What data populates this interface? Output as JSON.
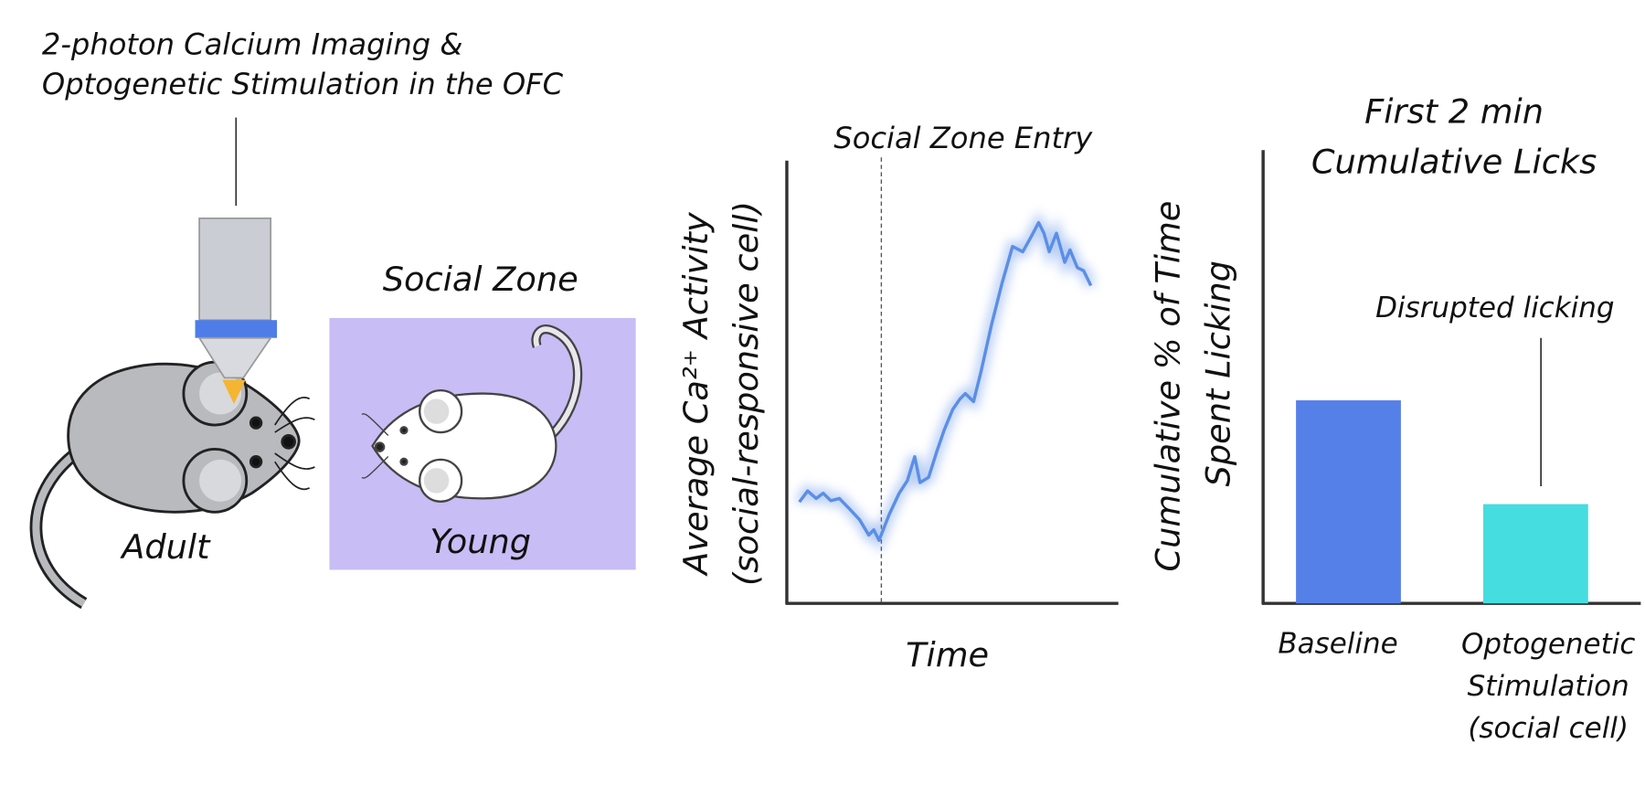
{
  "diagram": {
    "method_label": [
      "2-photon Calcium Imaging &",
      "Optogenetic Stimulation in the OFC"
    ],
    "zone_label": "Social Zone",
    "adult_label": "Adult",
    "young_label": "Young"
  },
  "chart_data": [
    {
      "type": "line",
      "ylabel": [
        "Average Ca²⁺ Activity",
        "(social-responsive cell)"
      ],
      "xlabel": "Time",
      "xlim": [
        0,
        100
      ],
      "ylim": [
        0,
        100
      ],
      "annotation": {
        "text": "Social Zone Entry",
        "x": 28.6
      },
      "series": [
        {
          "color": "#5b8ee6",
          "x": [
            3.8,
            6.3,
            8.9,
            11,
            13.3,
            15.9,
            19,
            22,
            24.8,
            26.3,
            27.9,
            31,
            34,
            36.5,
            38.7,
            40.3,
            42.9,
            45.4,
            47.6,
            50.2,
            52.4,
            54,
            56.5,
            58.7,
            61.9,
            65.1,
            68.3,
            71.4,
            74,
            76.2,
            77.8,
            79.4,
            81.6,
            84.1,
            85.7,
            87.9,
            89.8,
            92
          ],
          "values": [
            23,
            25.5,
            23.8,
            25,
            23.3,
            23.8,
            21.4,
            19,
            15.5,
            16.7,
            14.3,
            20.2,
            25,
            27.9,
            33.3,
            27.4,
            28.6,
            34.5,
            39.3,
            44,
            46.4,
            47.6,
            45.8,
            52.4,
            63.1,
            72.6,
            81,
            79.8,
            83.3,
            86.4,
            84,
            79.8,
            84,
            77.4,
            80.2,
            76.2,
            75.5,
            72.1
          ]
        }
      ]
    },
    {
      "type": "bar",
      "title": [
        "First 2 min",
        "Cumulative Licks"
      ],
      "ylabel": [
        "Cumulative % of Time",
        "Spent Licking"
      ],
      "ylim": [
        0,
        100
      ],
      "categories": [
        "Baseline",
        "Optogenetic\nStimulation\n(social cell)"
      ],
      "values": [
        45,
        22
      ],
      "colors": [
        "#5580e8",
        "#45dde0"
      ],
      "annotation": {
        "text": "Disrupted licking",
        "index": 1
      }
    }
  ]
}
